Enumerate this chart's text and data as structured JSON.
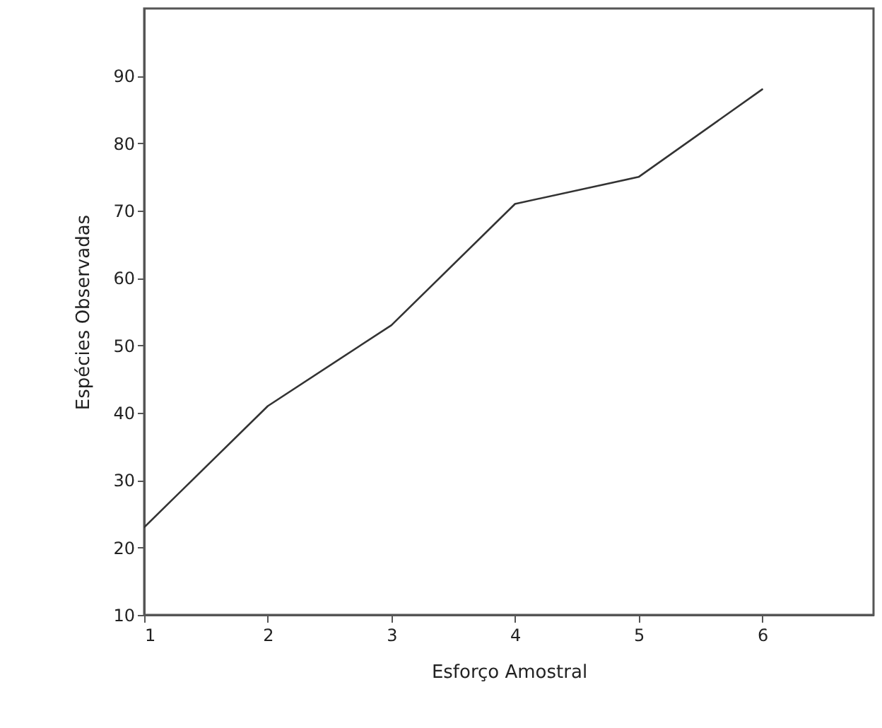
{
  "chart_data": {
    "type": "line",
    "xlabel": "Esforço Amostral",
    "ylabel": "Espécies Observadas",
    "x": [
      1,
      2,
      3,
      4,
      5,
      6
    ],
    "series": [
      {
        "color": "#333333",
        "values": [
          23,
          41,
          53,
          71,
          75,
          88
        ]
      }
    ],
    "xlim": [
      1,
      6.9
    ],
    "xticks": [
      1,
      2,
      3,
      4,
      5,
      6
    ],
    "ylim": [
      10,
      100
    ],
    "yticks": [
      10,
      20,
      30,
      40,
      50,
      60,
      70,
      80,
      90
    ],
    "grid": false,
    "marker": "none",
    "line_style": "solid"
  }
}
